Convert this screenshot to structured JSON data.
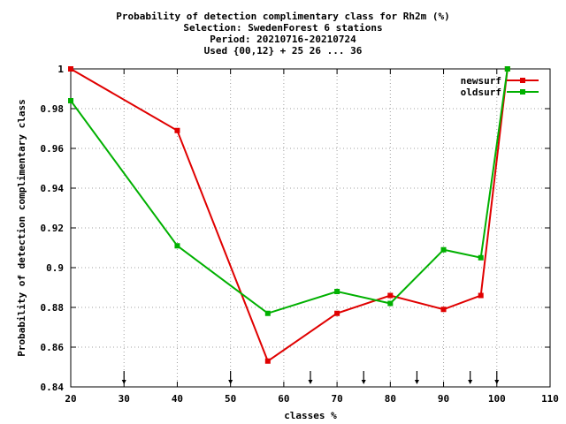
{
  "chart_data": {
    "type": "line",
    "title_lines": [
      "Probability of detection complimentary class  for Rh2m (%)",
      "Selection: SwedenForest      6 stations",
      "Period: 20210716-20210724",
      "Used {00,12} + 25 26 ... 36"
    ],
    "xlabel": "classes %",
    "ylabel": "Probability of detection complimentary class",
    "xlim": [
      20,
      110
    ],
    "ylim": [
      0.84,
      1.0
    ],
    "x_ticks": [
      "20",
      "30",
      "40",
      "50",
      "60",
      "70",
      "80",
      "90",
      "100",
      "110"
    ],
    "y_ticks": [
      "0.84",
      "0.86",
      "0.88",
      "0.9",
      "0.92",
      "0.94",
      "0.96",
      "0.98",
      "1"
    ],
    "grid": true,
    "legend_position": "top-right",
    "arrow_markers_x": [
      30,
      50,
      65,
      75,
      85,
      95,
      100
    ],
    "series": [
      {
        "name": "newsurf",
        "color": "#e00000",
        "x": [
          20,
          40,
          57,
          70,
          80,
          90,
          97,
          102
        ],
        "y": [
          1.0,
          0.969,
          0.853,
          0.877,
          0.886,
          0.879,
          0.886,
          1.0
        ]
      },
      {
        "name": "oldsurf",
        "color": "#00b000",
        "x": [
          20,
          40,
          57,
          70,
          80,
          90,
          97,
          102
        ],
        "y": [
          0.984,
          0.911,
          0.877,
          0.888,
          0.882,
          0.909,
          0.905,
          1.0
        ]
      }
    ]
  }
}
